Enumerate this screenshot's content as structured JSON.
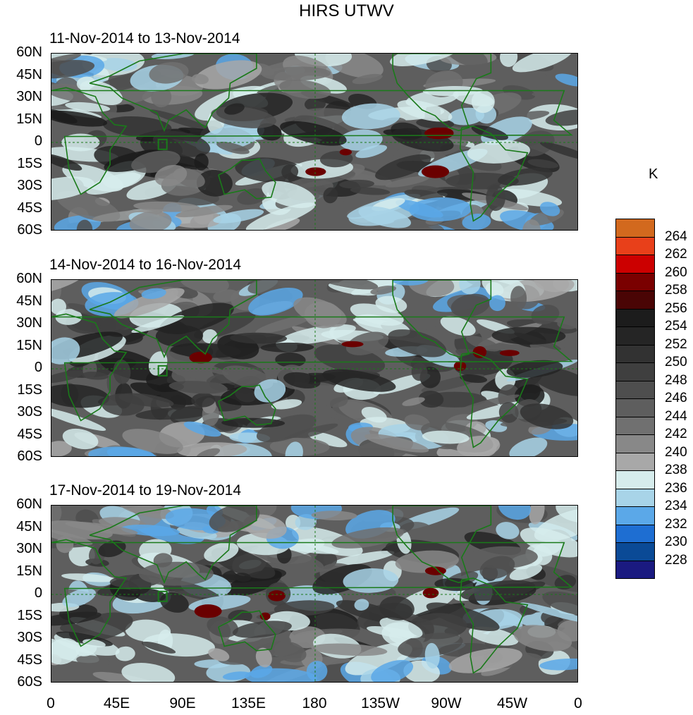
{
  "title": "HIRS UTWV",
  "panels": [
    {
      "title": "11-Nov-2014 to 13-Nov-2014"
    },
    {
      "title": "14-Nov-2014 to 16-Nov-2014"
    },
    {
      "title": "17-Nov-2014 to 19-Nov-2014"
    }
  ],
  "lat_labels": [
    "60N",
    "45N",
    "30N",
    "15N",
    "0",
    "15S",
    "30S",
    "45S",
    "60S"
  ],
  "lon_labels": [
    "0",
    "45E",
    "90E",
    "135E",
    "180",
    "135W",
    "90W",
    "45W",
    "0"
  ],
  "colorbar": {
    "unit": "K",
    "labels": [
      "264",
      "262",
      "260",
      "258",
      "256",
      "254",
      "252",
      "250",
      "248",
      "246",
      "244",
      "242",
      "240",
      "238",
      "236",
      "234",
      "232",
      "230",
      "228"
    ],
    "colors": [
      "#d2691e",
      "#e8401a",
      "#cc0000",
      "#7a0000",
      "#4a0505",
      "#1c1c1c",
      "#252525",
      "#323232",
      "#3f3f3f",
      "#4e4e4e",
      "#5e5e5e",
      "#707070",
      "#888888",
      "#a8a8a8",
      "#d6ecec",
      "#a8d4e8",
      "#5ba8e8",
      "#1e6ed2",
      "#0a4a96",
      "#1a1a80"
    ]
  },
  "land_color": "#1a7a1a"
}
